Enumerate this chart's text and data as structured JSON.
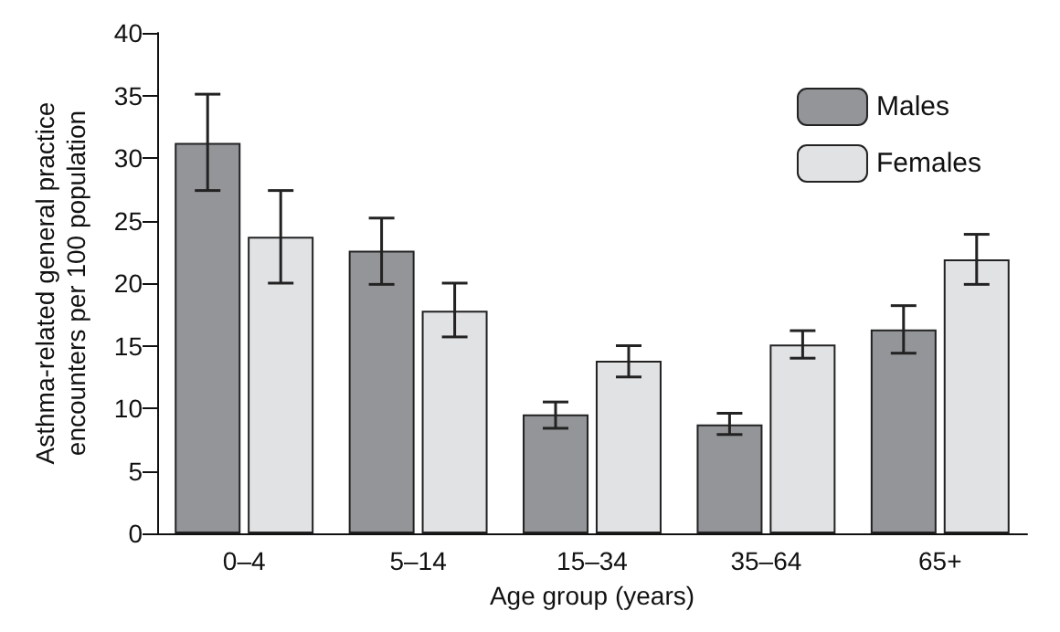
{
  "chart_data": {
    "type": "bar",
    "xlabel": "Age group (years)",
    "ylabel": "Asthma-related general practice\nencounters per 100 population",
    "categories": [
      "0–4",
      "5–14",
      "15–34",
      "35–64",
      "65+"
    ],
    "series": [
      {
        "name": "Males",
        "color": "#939598",
        "values": [
          31.2,
          22.6,
          9.5,
          8.7,
          16.3
        ],
        "errors": [
          [
            27.4,
            35.1
          ],
          [
            19.9,
            25.2
          ],
          [
            8.4,
            10.5
          ],
          [
            7.9,
            9.6
          ],
          [
            14.4,
            18.2
          ]
        ]
      },
      {
        "name": "Females",
        "color": "#e1e2e4",
        "values": [
          23.7,
          17.8,
          13.8,
          15.1,
          21.9
        ],
        "errors": [
          [
            20.0,
            27.4
          ],
          [
            15.7,
            20.0
          ],
          [
            12.5,
            15.0
          ],
          [
            14.0,
            16.2
          ],
          [
            19.9,
            23.9
          ]
        ]
      }
    ],
    "ylim": [
      0,
      40
    ],
    "yticks": [
      0,
      5,
      10,
      15,
      20,
      25,
      30,
      35,
      40
    ],
    "grid": false,
    "legend": "top right"
  }
}
